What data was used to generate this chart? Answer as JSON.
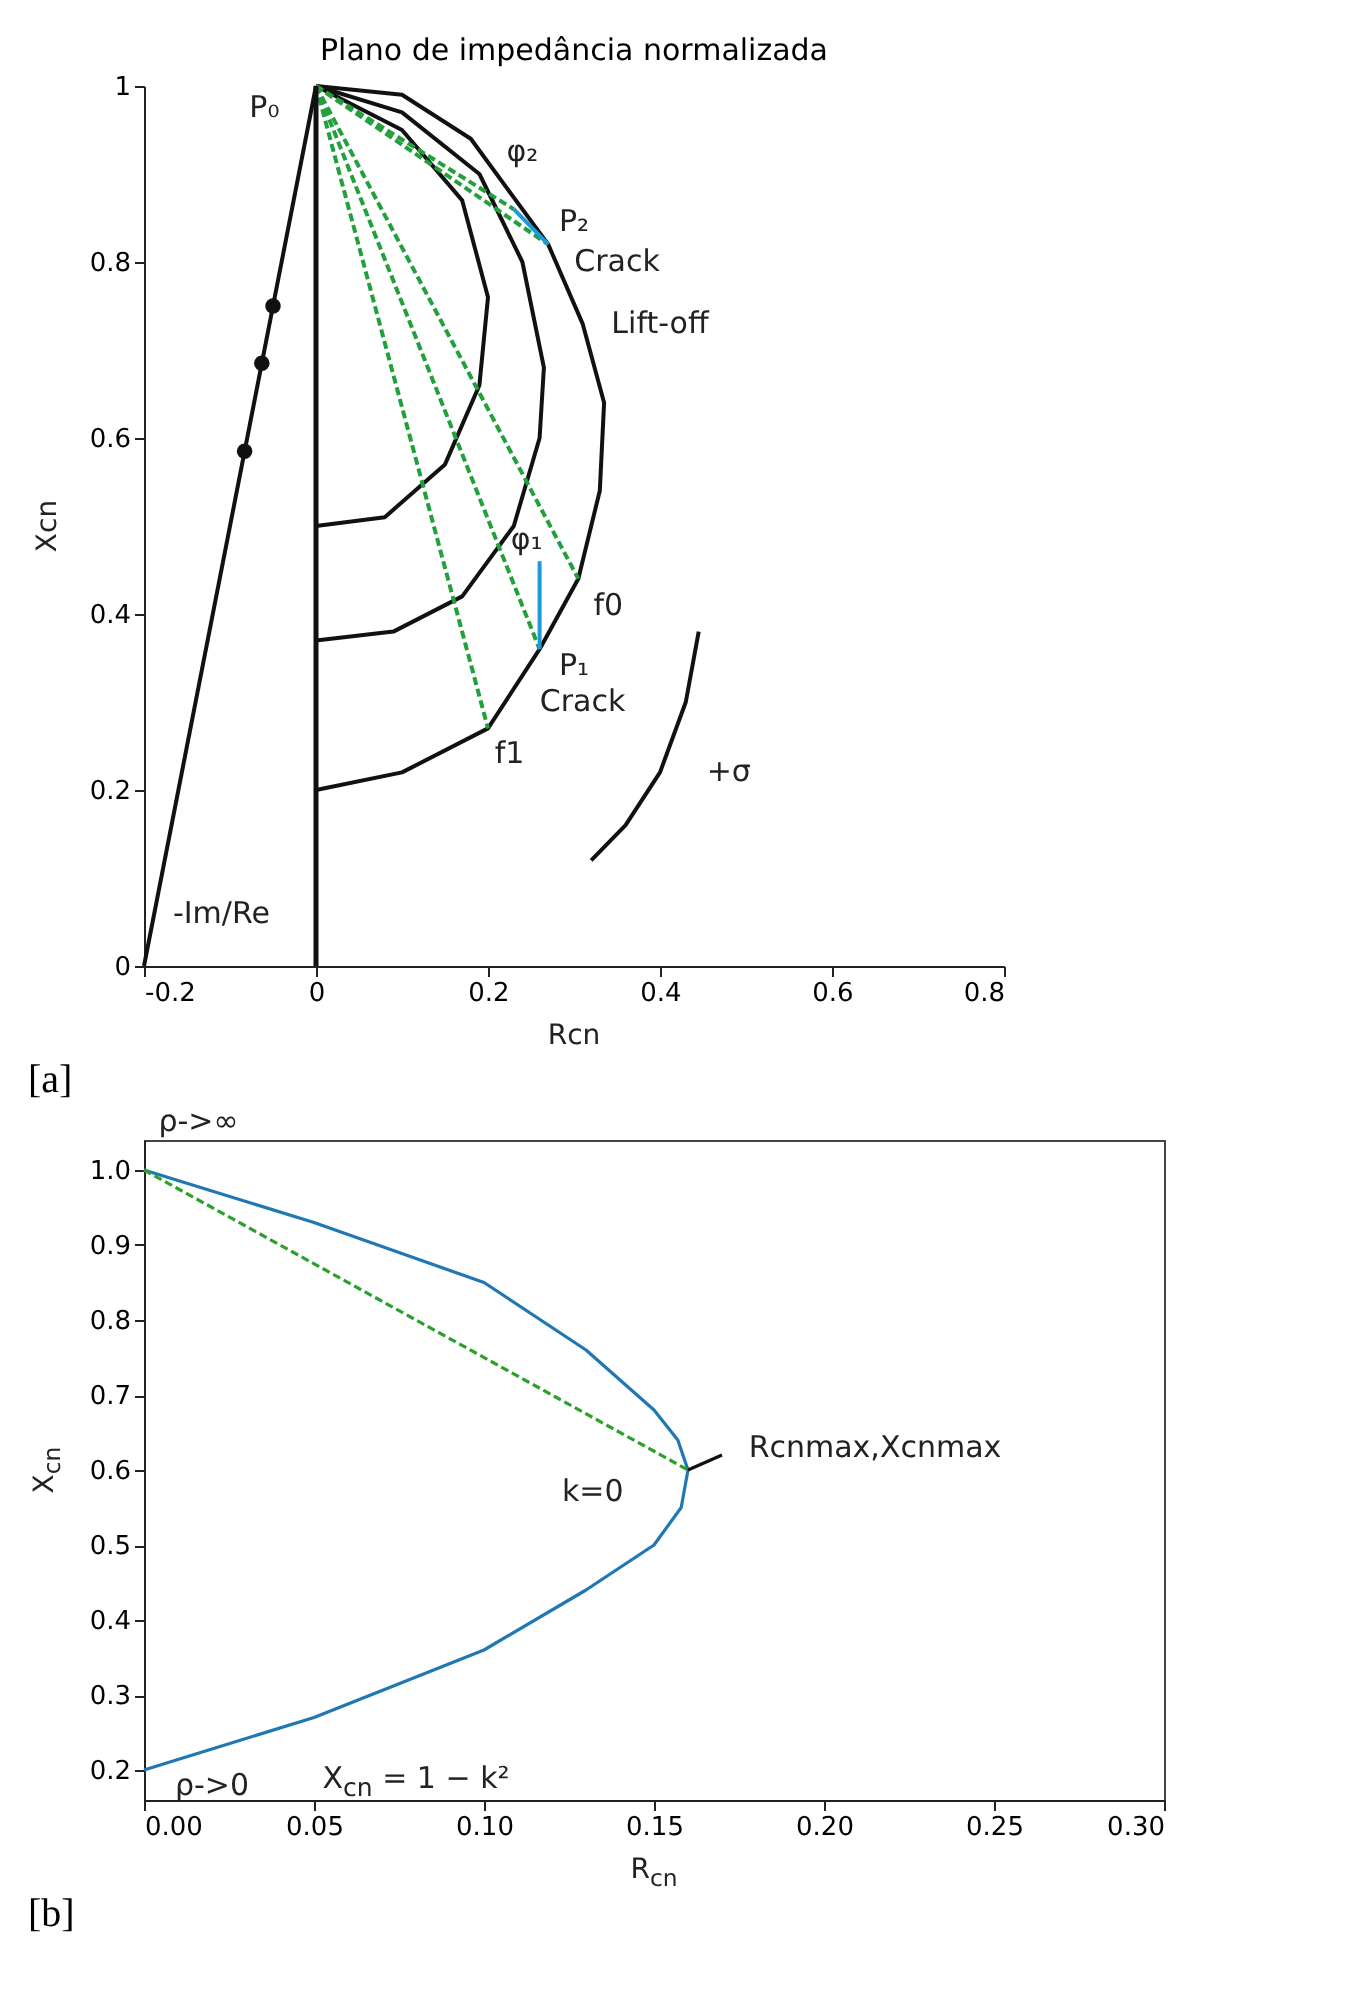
{
  "chart_data": [
    {
      "type": "line",
      "title": "Plano de impedância normalizada",
      "xlabel": "Rcn",
      "ylabel": "Xcn",
      "xlim": [
        -0.2,
        0.8
      ],
      "ylim": [
        0,
        1
      ],
      "xticks": [
        -0.2,
        0,
        0.2,
        0.4,
        0.6,
        0.8
      ],
      "yticks": [
        0,
        0.2,
        0.4,
        0.6,
        0.8,
        1
      ],
      "ref_lines": [
        {
          "axis": "x",
          "value": 0,
          "color": "#111111"
        }
      ],
      "series": [
        {
          "color": "#111111",
          "x": [
            -0.2,
            0
          ],
          "values": [
            0,
            1
          ]
        },
        {
          "type": "scatter",
          "color": "#111111",
          "marker": "circle",
          "x": [
            -0.05,
            -0.063,
            -0.083
          ],
          "values": [
            0.75,
            0.685,
            0.585
          ]
        },
        {
          "color": "#111111",
          "x": [
            0,
            0.1,
            0.17,
            0.2,
            0.19,
            0.15,
            0.08,
            0
          ],
          "values": [
            1,
            0.95,
            0.87,
            0.76,
            0.66,
            0.57,
            0.51,
            0.5
          ]
        },
        {
          "color": "#111111",
          "x": [
            0,
            0.1,
            0.19,
            0.24,
            0.265,
            0.26,
            0.23,
            0.17,
            0.09,
            0
          ],
          "values": [
            1,
            0.97,
            0.9,
            0.8,
            0.68,
            0.6,
            0.5,
            0.42,
            0.38,
            0.37
          ]
        },
        {
          "color": "#111111",
          "x": [
            0,
            0.1,
            0.18,
            0.27,
            0.31,
            0.335,
            0.33,
            0.305,
            0.26,
            0.2,
            0.1,
            0
          ],
          "values": [
            1,
            0.99,
            0.94,
            0.82,
            0.73,
            0.64,
            0.54,
            0.44,
            0.36,
            0.27,
            0.22,
            0.2
          ]
        },
        {
          "color": "#22a03c",
          "line_style": "dashed",
          "x": [
            0,
            0.2
          ],
          "values": [
            1,
            0.27
          ]
        },
        {
          "color": "#22a03c",
          "line_style": "dashed",
          "x": [
            0,
            0.26
          ],
          "values": [
            1,
            0.36
          ]
        },
        {
          "color": "#22a03c",
          "line_style": "dashed",
          "x": [
            0,
            0.305
          ],
          "values": [
            1,
            0.44
          ]
        },
        {
          "color": "#22a03c",
          "line_style": "dashed",
          "x": [
            0,
            0.27
          ],
          "values": [
            1,
            0.82
          ]
        },
        {
          "color": "#22a03c",
          "line_style": "dashed",
          "x": [
            0,
            0.23
          ],
          "values": [
            1,
            0.86
          ]
        },
        {
          "color": "#1f9ad6",
          "x": [
            0.26,
            0.26
          ],
          "values": [
            0.36,
            0.46
          ]
        },
        {
          "color": "#1f9ad6",
          "x": [
            0.23,
            0.27
          ],
          "values": [
            0.86,
            0.82
          ]
        },
        {
          "color": "#111111",
          "x": [
            0.445,
            0.43,
            0.4,
            0.36,
            0.32
          ],
          "values": [
            0.38,
            0.3,
            0.22,
            0.16,
            0.12
          ]
        }
      ],
      "annotations": [
        "P₀",
        "φ₂",
        "P₂",
        "Crack",
        "Lift-off",
        "φ₁",
        "f0",
        "P₁",
        "Crack",
        "f1",
        "+σ",
        "-Im/Re",
        "[a]"
      ]
    },
    {
      "type": "line",
      "xlabel": "R$_{cn}$",
      "ylabel": "X$_{cn}$",
      "xlim": [
        0,
        0.3
      ],
      "ylim": [
        0.16,
        1.04
      ],
      "xticks": [
        {
          "value": 0,
          "label": "0.00"
        },
        {
          "value": 0.05,
          "label": "0.05"
        },
        {
          "value": 0.1,
          "label": "0.10"
        },
        {
          "value": 0.15,
          "label": "0.15"
        },
        {
          "value": 0.2,
          "label": "0.20"
        },
        {
          "value": 0.25,
          "label": "0.25"
        },
        {
          "value": 0.3,
          "label": "0.30"
        }
      ],
      "yticks": [
        0.2,
        0.3,
        0.4,
        0.5,
        0.6,
        0.7,
        0.8,
        0.9,
        {
          "value": 1,
          "label": "1.0"
        }
      ],
      "series": [
        {
          "color": "#1f77b4",
          "x": [
            0,
            0.05,
            0.1,
            0.13,
            0.15,
            0.157,
            0.16,
            0.158,
            0.15,
            0.13,
            0.1,
            0.05,
            0
          ],
          "values": [
            1,
            0.93,
            0.85,
            0.76,
            0.68,
            0.64,
            0.6,
            0.55,
            0.5,
            0.44,
            0.36,
            0.27,
            0.2
          ]
        },
        {
          "color": "#2ca02c",
          "line_style": "dashed",
          "x": [
            0,
            0.16
          ],
          "values": [
            1,
            0.6
          ]
        },
        {
          "color": "#111111",
          "x": [
            0.16,
            0.17
          ],
          "values": [
            0.6,
            0.62
          ]
        }
      ],
      "annotations": [
        "ρ->∞",
        "Rcnmax,Xcnmax",
        "k=0",
        "ρ->0",
        "X$_{cn}$ = 1 − k²",
        "[b]"
      ]
    }
  ]
}
